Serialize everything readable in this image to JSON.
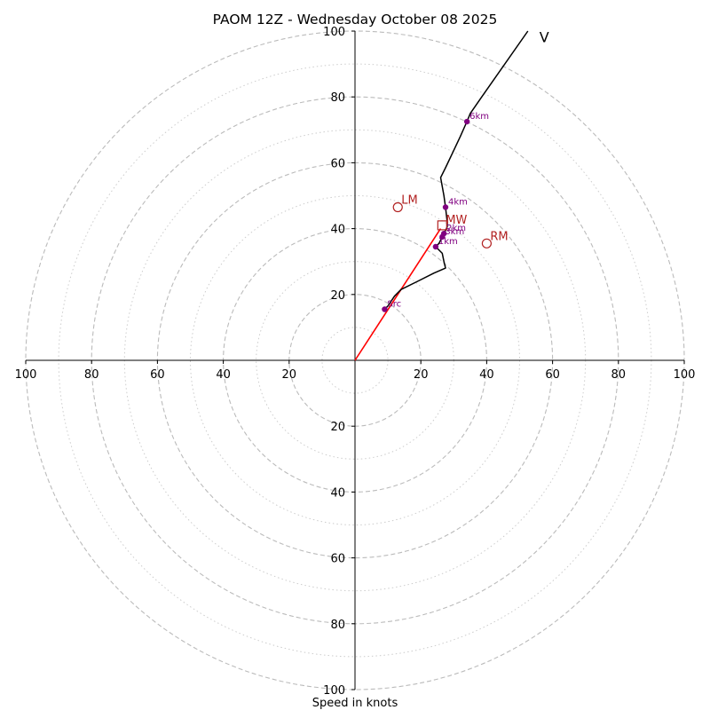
{
  "chart_data": {
    "type": "hodograph",
    "title": "PAOM 12Z - Wednesday October 08 2025",
    "xlabel": "Speed in knots",
    "range": [
      -100,
      100
    ],
    "ring_major": [
      20,
      40,
      60,
      80,
      100
    ],
    "ring_minor": [
      10,
      30,
      50,
      70,
      90
    ],
    "tick_values": [
      20,
      40,
      60,
      80,
      100
    ],
    "tick_labels": {
      "left": [
        "20",
        "40",
        "60",
        "80",
        "100"
      ],
      "right": [
        "20",
        "40",
        "60",
        "80",
        "100"
      ],
      "top": [
        "20",
        "40",
        "60",
        "80",
        "100"
      ],
      "bottom": [
        "20",
        "40",
        "60",
        "80",
        "100"
      ]
    },
    "hodograph_line": [
      [
        9,
        15.5
      ],
      [
        10,
        16.5
      ],
      [
        12,
        19.5
      ],
      [
        14,
        21.5
      ],
      [
        19,
        24
      ],
      [
        24,
        26.5
      ],
      [
        27.5,
        28
      ],
      [
        27,
        30
      ],
      [
        26.5,
        32.5
      ],
      [
        25,
        34
      ],
      [
        24.5,
        34.5
      ],
      [
        25.5,
        35.5
      ],
      [
        26.5,
        37.5
      ],
      [
        27,
        38.5
      ],
      [
        28,
        40.5
      ],
      [
        28,
        42
      ],
      [
        27.5,
        46.5
      ],
      [
        27,
        50
      ],
      [
        26,
        55.5
      ],
      [
        27.5,
        58.5
      ],
      [
        32,
        68
      ],
      [
        34,
        72.5
      ],
      [
        35,
        75
      ],
      [
        38.5,
        80
      ],
      [
        52.5,
        100
      ]
    ],
    "height_markers": [
      {
        "label": "Src",
        "u": 9,
        "v": 15.5
      },
      {
        "label": "1km",
        "u": 24.5,
        "v": 34.5
      },
      {
        "label": "3km",
        "u": 26.5,
        "v": 37.5
      },
      {
        "label": "2km",
        "u": 27,
        "v": 38.5
      },
      {
        "label": "4km",
        "u": 27.5,
        "v": 46.5
      },
      {
        "label": "6km",
        "u": 34,
        "v": 72.5
      }
    ],
    "mean_wind": {
      "label": "MW",
      "u": 26.5,
      "v": 41
    },
    "left_mover": {
      "label": "LM",
      "u": 13,
      "v": 46.5
    },
    "right_mover": {
      "label": "RM",
      "u": 40,
      "v": 35.5
    },
    "shear_vector": {
      "from": [
        0,
        0
      ],
      "to": [
        26,
        40
      ]
    },
    "top_label": {
      "text": "V",
      "u": 56,
      "v": 99
    },
    "colors": {
      "hodograph": "#000000",
      "markers": "#800080",
      "storm_motion": "#b22222",
      "shear_vector": "#ff0000",
      "grid": "#bbbbbb",
      "axis": "#000000"
    }
  }
}
